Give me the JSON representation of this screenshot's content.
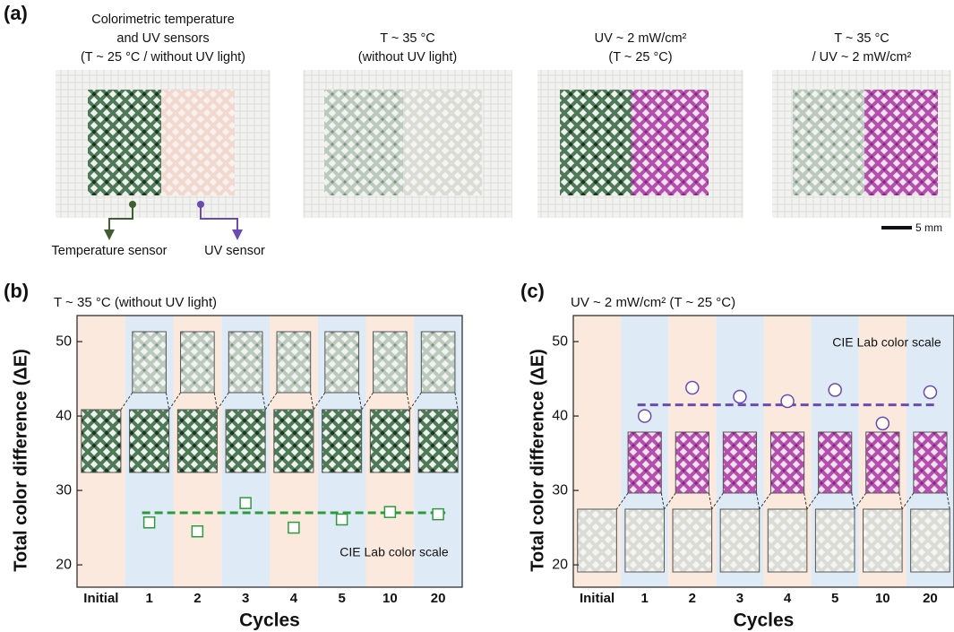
{
  "panel_a": {
    "label": "(a)",
    "photos": [
      {
        "caption": [
          "Colorimetric temperature",
          "and UV sensors",
          "(T ~ 25 °C  / without UV light)"
        ]
      },
      {
        "caption": [
          "T ~ 35 °C",
          "(without UV light)"
        ]
      },
      {
        "caption": [
          "UV ~ 2 mW/cm²",
          "(T ~ 25 °C)"
        ]
      },
      {
        "caption": [
          "T ~ 35 °C",
          "/ UV ~ 2 mW/cm²"
        ]
      }
    ],
    "callouts": [
      "Temperature sensor",
      "UV sensor"
    ],
    "scale_bar": "5 mm"
  },
  "chart_data": [
    {
      "type": "scatter",
      "panel_label": "(b)",
      "title": "T ~ 35 °C  (without UV light)",
      "x_label": "Cycles",
      "y_label": "Total color difference (ΔE)",
      "categories": [
        "Initial",
        "1",
        "2",
        "3",
        "4",
        "5",
        "10",
        "20"
      ],
      "series": [
        {
          "name": "ΔE",
          "color": "#2e9a3e",
          "marker": "square",
          "values": [
            null,
            25.7,
            24.5,
            28.3,
            25.0,
            26.1,
            27.1,
            26.8
          ]
        }
      ],
      "mean_line": {
        "value": 27.0,
        "color": "#2e9a3e"
      },
      "annotation": "CIE Lab color scale",
      "band_colors": [
        "#fbe9dd",
        "#deebf7"
      ],
      "ylim": [
        17,
        53.5
      ],
      "yticks": [
        20,
        30,
        40,
        50
      ]
    },
    {
      "type": "scatter",
      "panel_label": "(c)",
      "title": "UV ~ 2 mW/cm² (T ~ 25 °C)",
      "x_label": "Cycles",
      "y_label": "Total color difference (ΔE)",
      "categories": [
        "Initial",
        "1",
        "2",
        "3",
        "4",
        "5",
        "10",
        "20"
      ],
      "series": [
        {
          "name": "ΔE",
          "color": "#6b4bb0",
          "marker": "circle",
          "values": [
            null,
            40.0,
            43.8,
            42.6,
            42.0,
            43.5,
            39.0,
            43.2
          ]
        }
      ],
      "mean_line": {
        "value": 41.5,
        "color": "#6b4bb0"
      },
      "annotation": "CIE Lab color scale",
      "band_colors": [
        "#fbe9dd",
        "#deebf7"
      ],
      "ylim": [
        17,
        53.5
      ],
      "yticks": [
        20,
        30,
        40,
        50
      ]
    }
  ]
}
